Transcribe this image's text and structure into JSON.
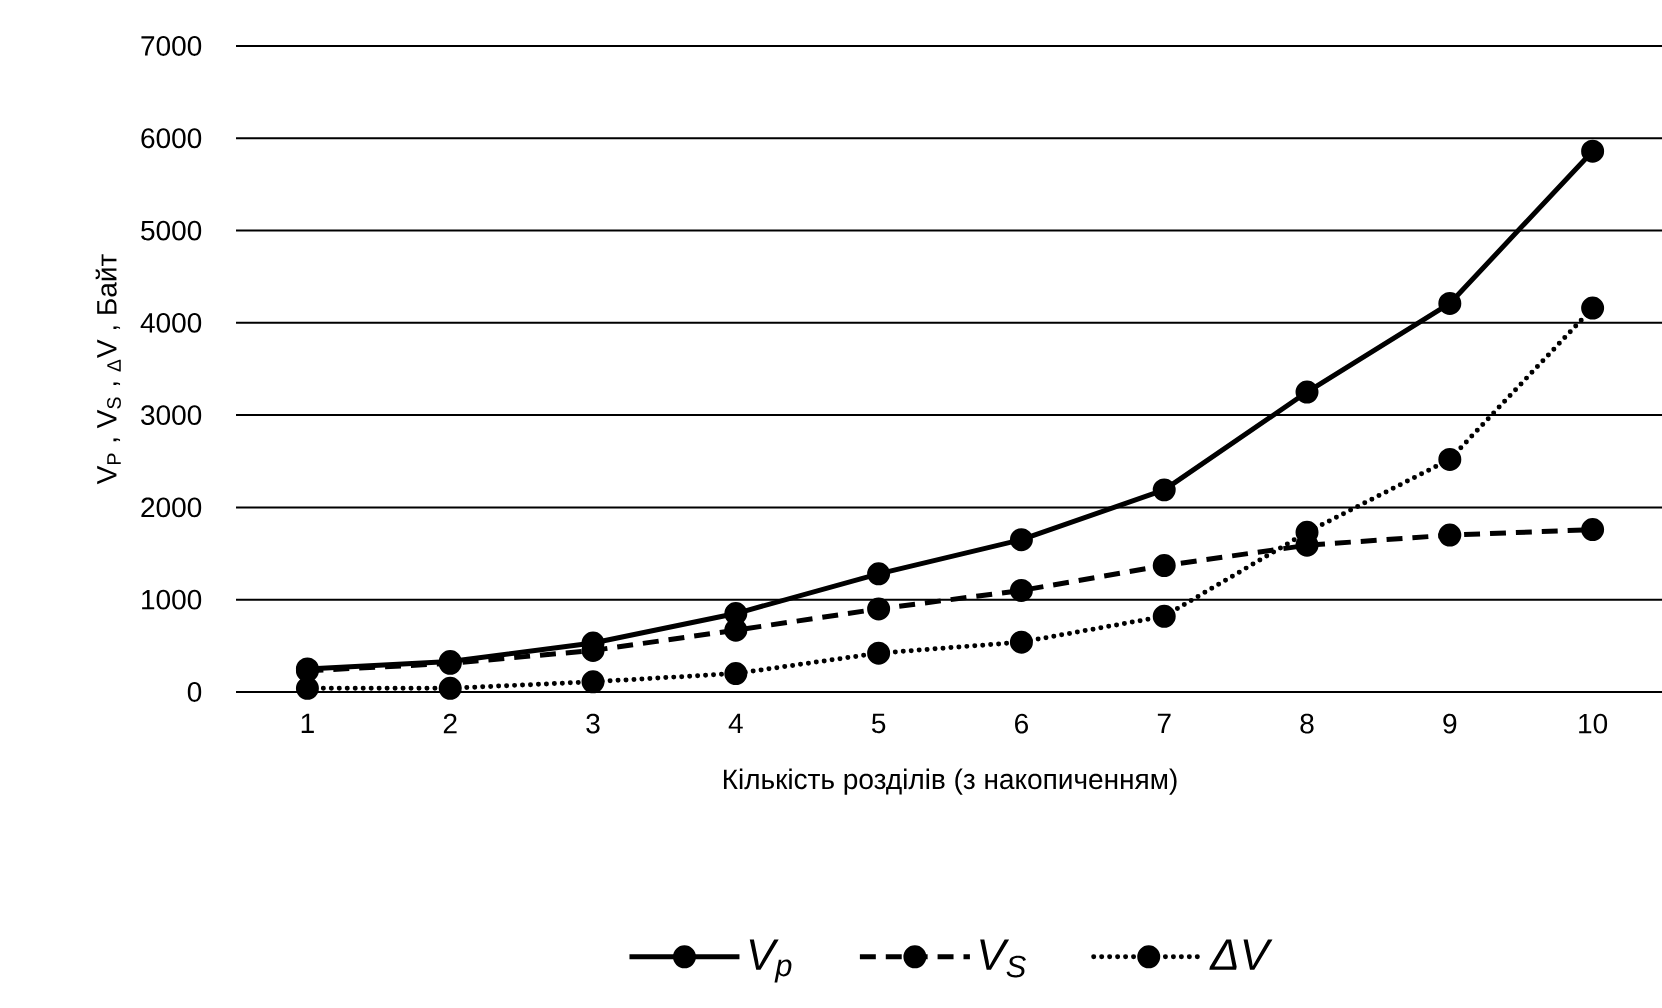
{
  "chart_data": {
    "type": "line",
    "xlabel": "Кількість розділів (з накопиченням)",
    "ylabel": "V$_{P}$ , V$_{S}$ , $_{Δ}$V , Байт",
    "categories": [
      "1",
      "2",
      "3",
      "4",
      "5",
      "6",
      "7",
      "8",
      "9",
      "10"
    ],
    "series": [
      {
        "name": "V$_{p}$",
        "color": "#000000",
        "line_style": "solid",
        "values": [
          250,
          330,
          530,
          850,
          1280,
          1650,
          2190,
          3250,
          4210,
          5860
        ]
      },
      {
        "name": "V$_{S}$",
        "color": "#000000",
        "line_style": "dashed",
        "values": [
          230,
          310,
          450,
          670,
          900,
          1100,
          1370,
          1590,
          1700,
          1760
        ]
      },
      {
        "name": "ΔV",
        "color": "#000000",
        "line_style": "dotted",
        "values": [
          40,
          40,
          110,
          200,
          420,
          540,
          820,
          1730,
          2520,
          4160
        ]
      }
    ],
    "ylim": [
      0,
      7000
    ],
    "yticks": [
      0,
      1000,
      2000,
      3000,
      4000,
      5000,
      6000,
      7000
    ],
    "grid": "y",
    "legend": "bottom",
    "marker": "circle"
  }
}
